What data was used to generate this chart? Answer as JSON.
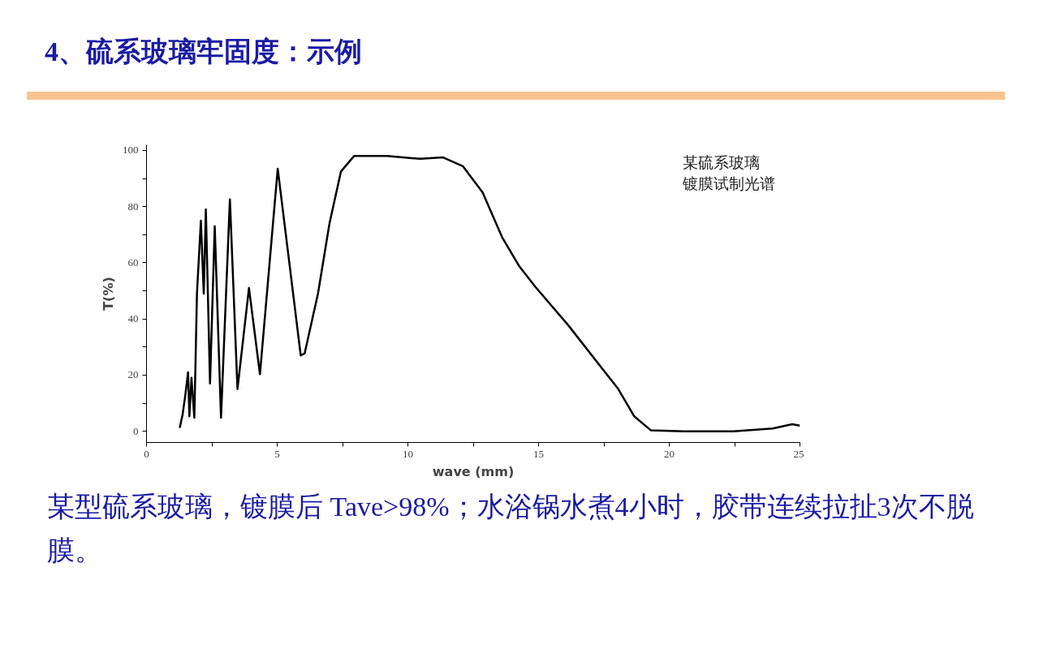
{
  "chart_data": {
    "type": "line",
    "title": "4、硫系玻璃牢固度：示例",
    "xlabel": "wave (mm)",
    "ylabel": "T(%)",
    "annotations": [
      "某硫系玻璃",
      "镀膜试制光谱",
      "某型硫系玻璃，镀膜后 Tave>98%；水浴锅水煮4小时，胶带连续拉扯3次不脱膜。"
    ],
    "series": [
      {
        "color": "#000000",
        "x": [
          1.27,
          1.38,
          1.48,
          1.59,
          1.64,
          1.72,
          1.83,
          1.93,
          2.08,
          2.19,
          2.27,
          2.43,
          2.61,
          2.85,
          3.19,
          3.48,
          3.92,
          4.34,
          5.02,
          5.9,
          6.05,
          6.56,
          7.0,
          7.44,
          7.94,
          9.2,
          10.47,
          11.35,
          12.1,
          12.86,
          13.62,
          14.25,
          14.88,
          16.14,
          17.4,
          18.03,
          18.66,
          19.3,
          20.55,
          22.45,
          23.96,
          24.7,
          25.0
        ],
        "values": [
          1.2,
          5.9,
          12.5,
          21,
          5.3,
          19,
          4.8,
          49,
          75,
          49,
          79,
          17,
          73,
          4.8,
          82.6,
          15,
          51,
          20.3,
          93.5,
          27,
          27.7,
          49,
          74,
          92.5,
          98,
          98,
          97,
          97.5,
          94.4,
          85,
          68.8,
          58.9,
          51.4,
          37.7,
          22.7,
          15.3,
          5.3,
          0.3,
          0,
          0,
          1,
          2.5,
          2
        ]
      }
    ],
    "xlim": [
      0,
      25
    ],
    "ylim": [
      -4,
      102
    ],
    "xticks": [
      0,
      {
        "value": 2.5,
        "label": null
      },
      5,
      {
        "value": 7.5,
        "label": null
      },
      10,
      {
        "value": 12.5,
        "label": null
      },
      15,
      {
        "value": 17.5,
        "label": null
      },
      20,
      {
        "value": 22.5,
        "label": null
      },
      25
    ],
    "yticks": [
      0,
      {
        "value": 10,
        "label": null
      },
      20,
      {
        "value": 30,
        "label": null
      },
      40,
      {
        "value": 50,
        "label": null
      },
      60,
      {
        "value": 70,
        "label": null
      },
      80,
      {
        "value": 90,
        "label": null
      },
      100
    ],
    "grid": false,
    "marker": "none",
    "line_style": "solid"
  }
}
